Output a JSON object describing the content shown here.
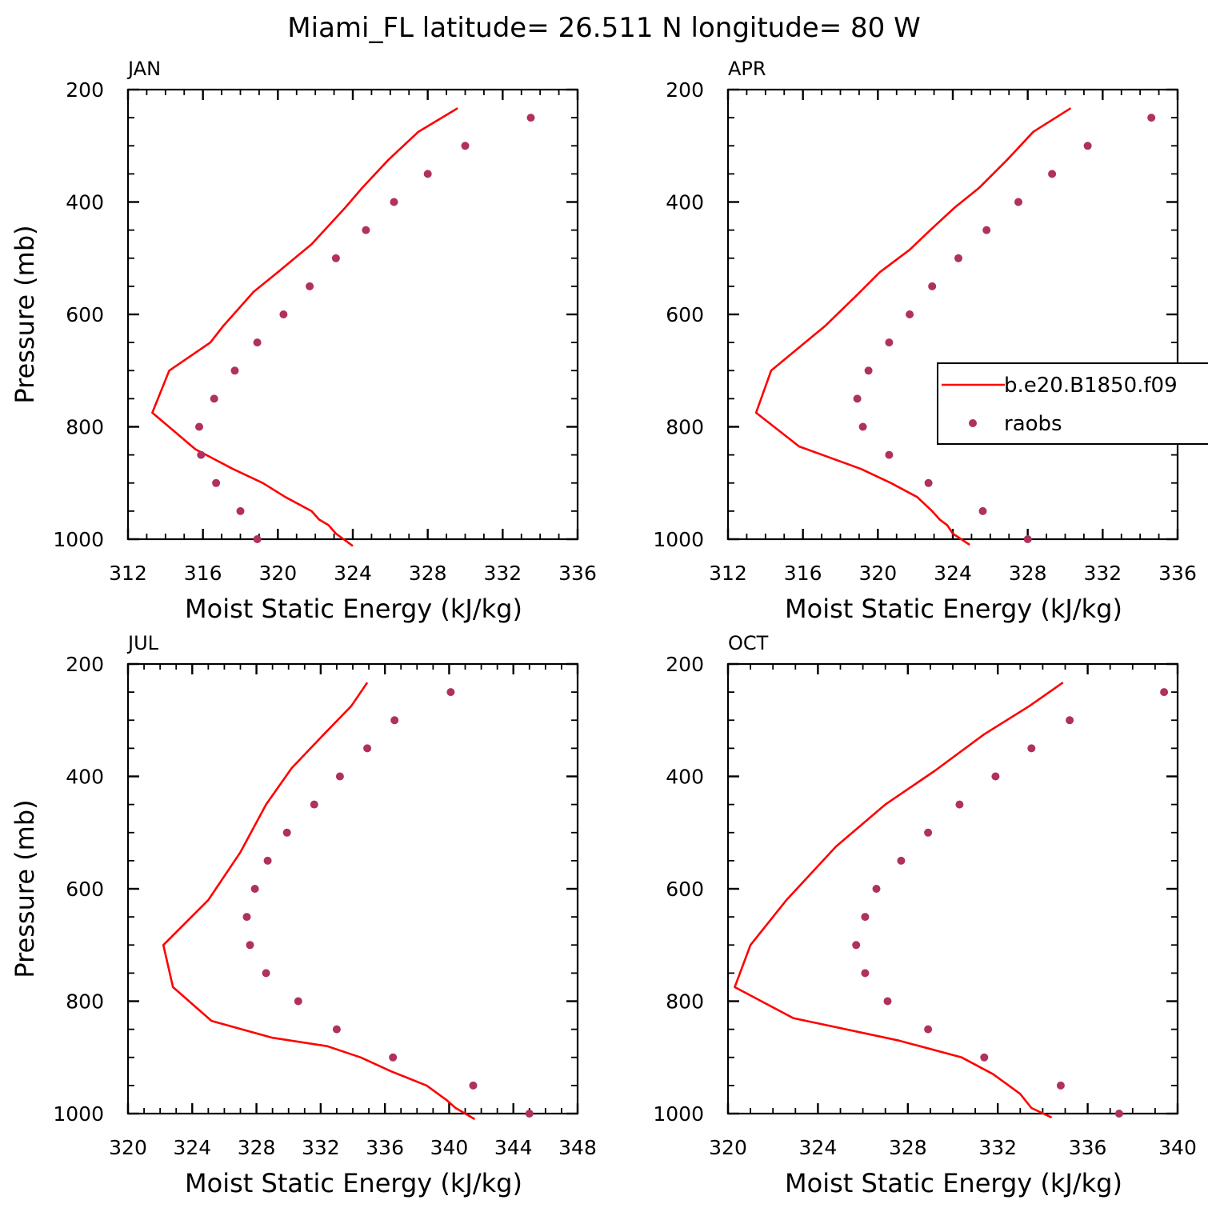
{
  "title": "Miami_FL  latitude= 26.511 N longitude= 80 W",
  "colors": {
    "model": "#ff0000",
    "raobs": "#b03060",
    "frame": "#000000"
  },
  "legend": {
    "model_label": "b.e20.B1850.f09",
    "raobs_label": "raobs",
    "placement": "right-middle of APR panel"
  },
  "chart_data": [
    {
      "type": "line+scatter",
      "panel_label": "JAN",
      "xlabel": "Moist Static Energy (kJ/kg)",
      "ylabel": "Pressure (mb)",
      "xlim": [
        312,
        336
      ],
      "xticks": [
        "312",
        "316",
        "320",
        "324",
        "328",
        "332",
        "336"
      ],
      "ylim": [
        1000,
        200
      ],
      "yticks": [
        "200",
        "400",
        "600",
        "800",
        "1000"
      ],
      "series": [
        {
          "name": "b.e20.B1850.f09",
          "kind": "line",
          "x": [
            329.6,
            327.5,
            325.9,
            324.5,
            323.6,
            321.8,
            320.0,
            318.7,
            317.1,
            316.4,
            314.2,
            313.3,
            315.6,
            317.6,
            319.2,
            320.4,
            321.8,
            322.2,
            322.7,
            323.1,
            324.0
          ],
          "y": [
            233,
            275,
            325,
            375,
            410,
            475,
            525,
            560,
            620,
            650,
            700,
            775,
            840,
            875,
            900,
            925,
            950,
            965,
            975,
            990,
            1012
          ]
        },
        {
          "name": "raobs",
          "kind": "scatter",
          "x": [
            333.5,
            330.0,
            328.0,
            326.2,
            324.7,
            323.1,
            321.7,
            320.3,
            318.9,
            317.7,
            316.6,
            315.8,
            315.9,
            316.7,
            318.0,
            318.9
          ],
          "y": [
            250,
            300,
            350,
            400,
            450,
            500,
            550,
            600,
            650,
            700,
            750,
            800,
            850,
            900,
            950,
            1000
          ]
        }
      ]
    },
    {
      "type": "line+scatter",
      "panel_label": "APR",
      "xlabel": "Moist Static Energy (kJ/kg)",
      "ylabel": "",
      "xlim": [
        312,
        336
      ],
      "xticks": [
        "312",
        "316",
        "320",
        "324",
        "328",
        "332",
        "336"
      ],
      "ylim": [
        1000,
        200
      ],
      "yticks": [
        "200",
        "400",
        "600",
        "800",
        "1000"
      ],
      "series": [
        {
          "name": "b.e20.B1850.f09",
          "kind": "line",
          "x": [
            330.3,
            328.3,
            326.9,
            325.4,
            324.1,
            322.8,
            321.7,
            320.1,
            318.9,
            317.2,
            314.3,
            313.5,
            315.8,
            319.1,
            320.7,
            322.1,
            322.9,
            323.3,
            323.7,
            324.0,
            324.9
          ],
          "y": [
            233,
            275,
            325,
            375,
            410,
            450,
            485,
            525,
            565,
            620,
            700,
            775,
            835,
            875,
            900,
            925,
            950,
            965,
            975,
            990,
            1010
          ]
        },
        {
          "name": "raobs",
          "kind": "scatter",
          "x": [
            334.6,
            331.2,
            329.3,
            327.5,
            325.8,
            324.3,
            322.9,
            321.7,
            320.6,
            319.5,
            318.9,
            319.2,
            320.6,
            322.7,
            325.6,
            328.0
          ],
          "y": [
            250,
            300,
            350,
            400,
            450,
            500,
            550,
            600,
            650,
            700,
            750,
            800,
            850,
            900,
            950,
            1000
          ]
        }
      ]
    },
    {
      "type": "line+scatter",
      "panel_label": "JUL",
      "xlabel": "Moist Static Energy (kJ/kg)",
      "ylabel": "Pressure (mb)",
      "xlim": [
        320,
        348
      ],
      "xticks": [
        "320",
        "324",
        "328",
        "332",
        "336",
        "340",
        "344",
        "348"
      ],
      "ylim": [
        1000,
        200
      ],
      "yticks": [
        "200",
        "400",
        "600",
        "800",
        "1000"
      ],
      "series": [
        {
          "name": "b.e20.B1850.f09",
          "kind": "line",
          "x": [
            334.9,
            333.9,
            332.2,
            330.2,
            328.6,
            327.0,
            325.0,
            322.2,
            322.8,
            325.2,
            329.0,
            332.4,
            334.5,
            336.4,
            338.6,
            339.8,
            340.4,
            341.6
          ],
          "y": [
            233,
            275,
            325,
            385,
            450,
            535,
            620,
            700,
            775,
            835,
            865,
            880,
            900,
            925,
            950,
            975,
            990,
            1010
          ]
        },
        {
          "name": "raobs",
          "kind": "scatter",
          "x": [
            340.1,
            336.6,
            334.9,
            333.2,
            331.6,
            329.9,
            328.7,
            327.9,
            327.4,
            327.6,
            328.6,
            330.6,
            333.0,
            336.5,
            341.5,
            345.0
          ],
          "y": [
            250,
            300,
            350,
            400,
            450,
            500,
            550,
            600,
            650,
            700,
            750,
            800,
            850,
            900,
            950,
            1000
          ]
        }
      ]
    },
    {
      "type": "line+scatter",
      "panel_label": "OCT",
      "xlabel": "Moist Static Energy (kJ/kg)",
      "ylabel": "",
      "xlim": [
        320,
        340
      ],
      "xticks": [
        "320",
        "324",
        "328",
        "332",
        "336",
        "340"
      ],
      "ylim": [
        1000,
        200
      ],
      "yticks": [
        "200",
        "400",
        "600",
        "800",
        "1000"
      ],
      "series": [
        {
          "name": "b.e20.B1850.f09",
          "kind": "line",
          "x": [
            334.9,
            333.4,
            331.4,
            329.2,
            327.0,
            324.8,
            322.6,
            321.0,
            320.3,
            322.9,
            327.6,
            330.4,
            331.8,
            333.0,
            333.5,
            334.4
          ],
          "y": [
            233,
            275,
            325,
            390,
            450,
            525,
            620,
            700,
            775,
            830,
            870,
            900,
            930,
            965,
            990,
            1007
          ]
        },
        {
          "name": "raobs",
          "kind": "scatter",
          "x": [
            339.4,
            335.2,
            333.5,
            331.9,
            330.3,
            328.9,
            327.7,
            326.6,
            326.1,
            325.7,
            326.1,
            327.1,
            328.9,
            331.4,
            334.8,
            337.4
          ],
          "y": [
            250,
            300,
            350,
            400,
            450,
            500,
            550,
            600,
            650,
            700,
            750,
            800,
            850,
            900,
            950,
            1000
          ]
        }
      ]
    }
  ]
}
